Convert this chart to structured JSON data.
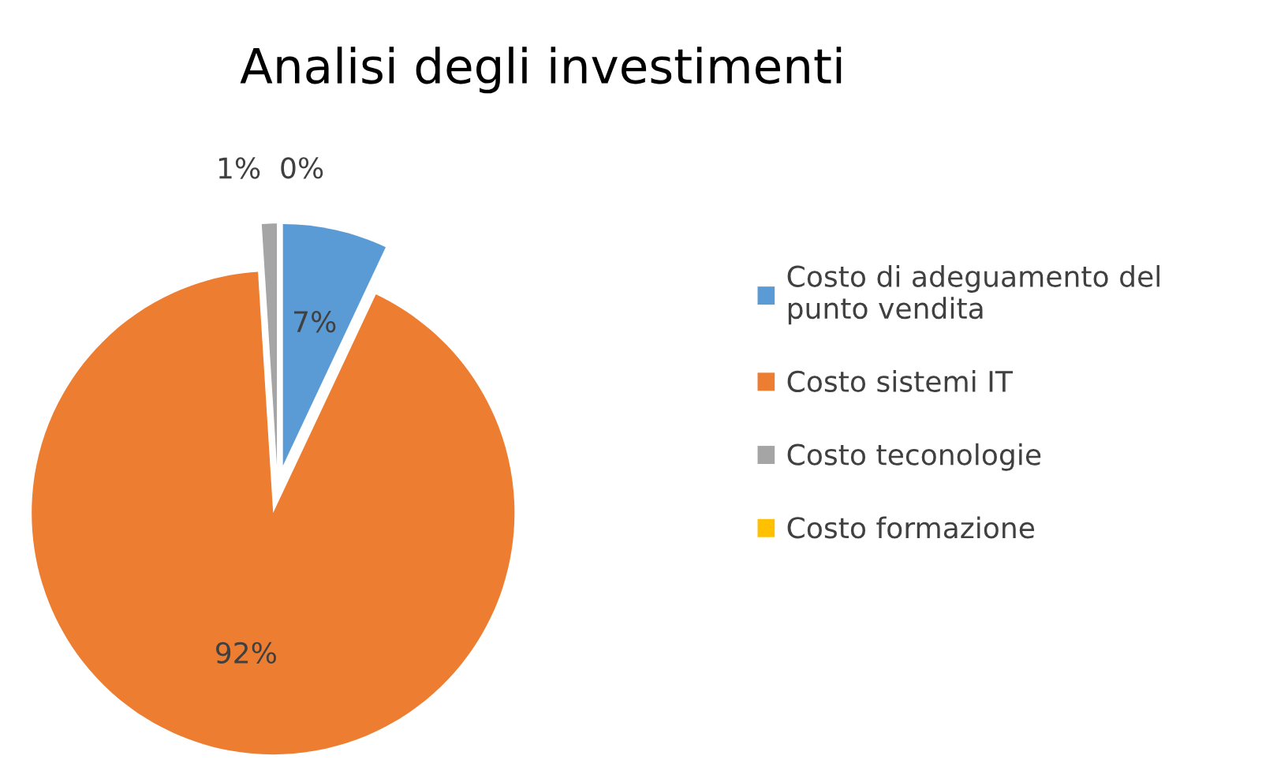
{
  "chart_data": {
    "type": "pie",
    "title": "Analisi degli investimenti",
    "categories": [
      "Costo di adeguamento del punto vendita",
      "Costo sistemi IT",
      "Costo teconologie",
      "Costo formazione"
    ],
    "values": [
      7,
      92,
      1,
      0
    ],
    "value_labels": [
      "7%",
      "92%",
      "1%",
      "0%"
    ],
    "colors": [
      "#5b9bd5",
      "#ed7d31",
      "#a5a5a5",
      "#ffc000"
    ],
    "legend": "right"
  }
}
